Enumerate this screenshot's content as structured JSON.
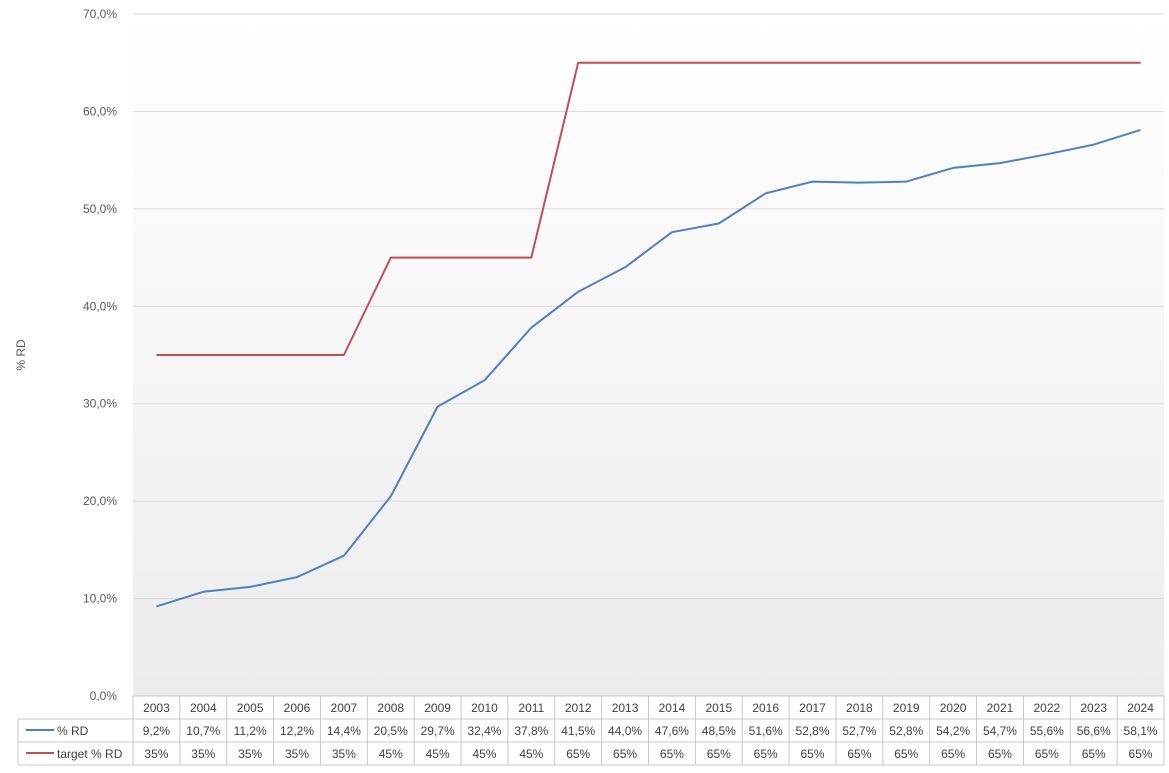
{
  "chart_data": {
    "type": "line",
    "title": "",
    "xlabel": "",
    "ylabel": "% RD",
    "ylim": [
      0,
      70
    ],
    "yticks": [
      "0,0%",
      "10,0%",
      "20,0%",
      "30,0%",
      "40,0%",
      "50,0%",
      "60,0%",
      "70,0%"
    ],
    "y_tick_values": [
      0,
      10,
      20,
      30,
      40,
      50,
      60,
      70
    ],
    "grid": true,
    "legend": "data-table",
    "categories": [
      "2003",
      "2004",
      "2005",
      "2006",
      "2007",
      "2008",
      "2009",
      "2010",
      "2011",
      "2012",
      "2013",
      "2014",
      "2015",
      "2016",
      "2017",
      "2018",
      "2019",
      "2020",
      "2021",
      "2022",
      "2023",
      "2024"
    ],
    "series": [
      {
        "name": "% RD",
        "color": "#4f81bd",
        "values": [
          9.2,
          10.7,
          11.2,
          12.2,
          14.4,
          20.5,
          29.7,
          32.4,
          37.8,
          41.5,
          44.0,
          47.6,
          48.5,
          51.6,
          52.8,
          52.7,
          52.8,
          54.2,
          54.7,
          55.6,
          56.6,
          58.1
        ],
        "labels": [
          "9,2%",
          "10,7%",
          "11,2%",
          "12,2%",
          "14,4%",
          "20,5%",
          "29,7%",
          "32,4%",
          "37,8%",
          "41,5%",
          "44,0%",
          "47,6%",
          "48,5%",
          "51,6%",
          "52,8%",
          "52,7%",
          "52,8%",
          "54,2%",
          "54,7%",
          "55,6%",
          "56,6%",
          "58,1%"
        ]
      },
      {
        "name": "target % RD",
        "color": "#c0504d",
        "values": [
          35,
          35,
          35,
          35,
          35,
          45,
          45,
          45,
          45,
          65,
          65,
          65,
          65,
          65,
          65,
          65,
          65,
          65,
          65,
          65,
          65,
          65
        ],
        "labels": [
          "35%",
          "35%",
          "35%",
          "35%",
          "35%",
          "45%",
          "45%",
          "45%",
          "45%",
          "65%",
          "65%",
          "65%",
          "65%",
          "65%",
          "65%",
          "65%",
          "65%",
          "65%",
          "65%",
          "65%",
          "65%",
          "65%"
        ]
      }
    ]
  }
}
